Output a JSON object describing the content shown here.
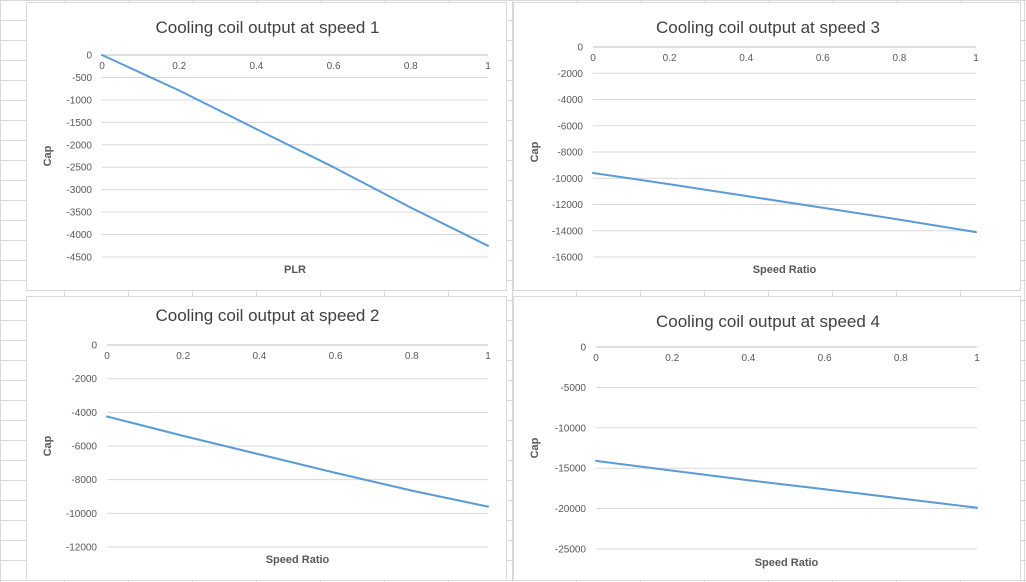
{
  "chart_data": [
    {
      "id": "c1",
      "type": "line",
      "title": "Cooling coil output at speed 1",
      "xlabel": "PLR",
      "ylabel": "Cap",
      "xlim": [
        0,
        1
      ],
      "ylim": [
        -4500,
        0
      ],
      "xticks": [
        0,
        0.2,
        0.4,
        0.6,
        0.8,
        1
      ],
      "yticks": [
        0,
        -500,
        -1000,
        -1500,
        -2000,
        -2500,
        -3000,
        -3500,
        -4000,
        -4500
      ],
      "grid": true,
      "line_color": "#5b9bd5",
      "series": [
        {
          "x": [
            0,
            0.2,
            0.4,
            0.6,
            0.8,
            1
          ],
          "values": [
            0,
            -790,
            -1650,
            -2500,
            -3400,
            -4250
          ]
        }
      ]
    },
    {
      "id": "c3",
      "type": "line",
      "title": "Cooling coil output at speed 3",
      "xlabel": "Speed Ratio",
      "ylabel": "Cap",
      "xlim": [
        0,
        1
      ],
      "ylim": [
        -16000,
        0
      ],
      "xticks": [
        0,
        0.2,
        0.4,
        0.6,
        0.8,
        1
      ],
      "yticks": [
        0,
        -2000,
        -4000,
        -6000,
        -8000,
        -10000,
        -12000,
        -14000,
        -16000
      ],
      "grid": true,
      "line_color": "#5b9bd5",
      "series": [
        {
          "x": [
            0,
            0.2,
            0.4,
            0.6,
            0.8,
            1
          ],
          "values": [
            -9600,
            -10450,
            -11350,
            -12250,
            -13150,
            -14100
          ]
        }
      ]
    },
    {
      "id": "c2",
      "type": "line",
      "title": "Cooling coil output at speed 2",
      "xlabel": "Speed Ratio",
      "ylabel": "Cap",
      "xlim": [
        0,
        1
      ],
      "ylim": [
        -12000,
        0
      ],
      "xticks": [
        0,
        0.2,
        0.4,
        0.6,
        0.8,
        1
      ],
      "yticks": [
        0,
        -2000,
        -4000,
        -6000,
        -8000,
        -10000,
        -12000
      ],
      "grid": true,
      "line_color": "#5b9bd5",
      "series": [
        {
          "x": [
            0,
            0.2,
            0.4,
            0.6,
            0.8,
            1
          ],
          "values": [
            -4250,
            -5400,
            -6500,
            -7600,
            -8650,
            -9600
          ]
        }
      ]
    },
    {
      "id": "c4",
      "type": "line",
      "title": "Cooling coil output at speed 4",
      "xlabel": "Speed Ratio",
      "ylabel": "Cap",
      "xlim": [
        0,
        1
      ],
      "ylim": [
        -25000,
        0
      ],
      "xticks": [
        0,
        0.2,
        0.4,
        0.6,
        0.8,
        1
      ],
      "yticks": [
        0,
        -5000,
        -10000,
        -15000,
        -20000,
        -25000
      ],
      "grid": true,
      "line_color": "#5b9bd5",
      "series": [
        {
          "x": [
            0,
            0.2,
            0.4,
            0.6,
            0.8,
            1
          ],
          "values": [
            -14100,
            -15300,
            -16500,
            -17600,
            -18750,
            -19900
          ]
        }
      ]
    }
  ]
}
